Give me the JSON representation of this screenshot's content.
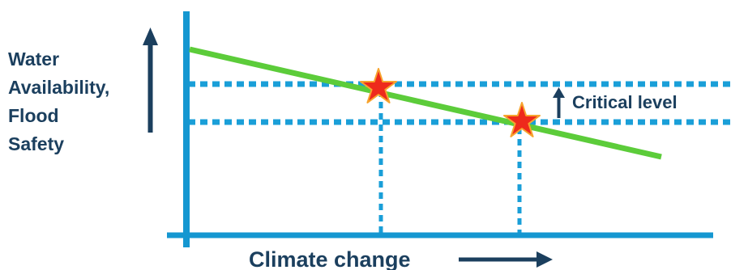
{
  "diagram": {
    "y_axis_label_lines": [
      "Water",
      "Availability,",
      "Flood",
      "Safety"
    ],
    "x_axis_label": "Climate change",
    "critical_level_label": "Critical level",
    "colors": {
      "axis": "#1597d1",
      "dotted": "#1a9fd8",
      "trend_line": "#5ccc3a",
      "arrows": "#1b3f5e",
      "text": "#1b3f5e",
      "star_fill": "#ee2a1c",
      "star_stroke": "#f7a42e"
    },
    "icons": [
      "up-arrow-icon",
      "right-arrow-icon",
      "star-icon"
    ]
  }
}
